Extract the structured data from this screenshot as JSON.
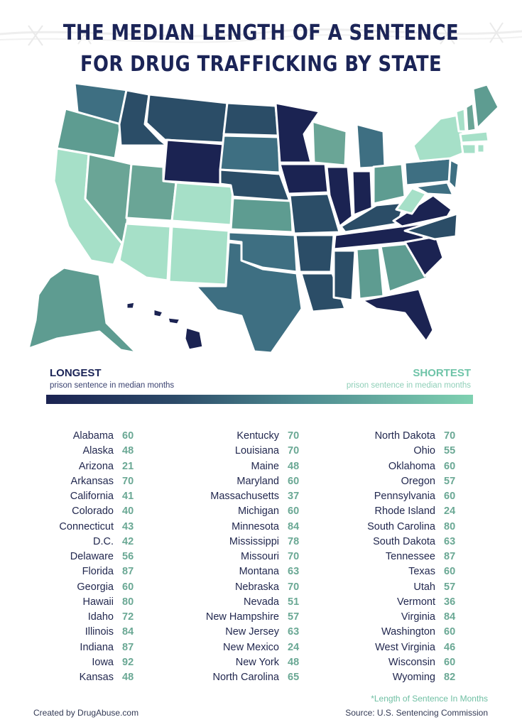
{
  "title_line1": "THE MEDIAN LENGTH OF A SENTENCE",
  "title_line2": "FOR DRUG TRAFFICKING BY STATE",
  "legend": {
    "longest": "LONGEST",
    "longest_sub": "prison sentence in median months",
    "shortest": "SHORTEST",
    "shortest_sub": "prison sentence in median months",
    "color_dark": "#1b2352",
    "color_light": "#7fd1b1"
  },
  "columns": [
    [
      {
        "state": "Alabama",
        "value": "60"
      },
      {
        "state": "Alaska",
        "value": "48"
      },
      {
        "state": "Arizona",
        "value": "21"
      },
      {
        "state": "Arkansas",
        "value": "70"
      },
      {
        "state": "California",
        "value": "41"
      },
      {
        "state": "Colorado",
        "value": "40"
      },
      {
        "state": "Connecticut",
        "value": "43"
      },
      {
        "state": "D.C.",
        "value": "42"
      },
      {
        "state": "Delaware",
        "value": "56"
      },
      {
        "state": "Florida",
        "value": "87"
      },
      {
        "state": "Georgia",
        "value": "60"
      },
      {
        "state": "Hawaii",
        "value": "80"
      },
      {
        "state": "Idaho",
        "value": "72"
      },
      {
        "state": "Illinois",
        "value": "84"
      },
      {
        "state": "Indiana",
        "value": "87"
      },
      {
        "state": "Iowa",
        "value": "92"
      },
      {
        "state": "Kansas",
        "value": "48"
      }
    ],
    [
      {
        "state": "Kentucky",
        "value": "70"
      },
      {
        "state": "Louisiana",
        "value": "70"
      },
      {
        "state": "Maine",
        "value": "48"
      },
      {
        "state": "Maryland",
        "value": "60"
      },
      {
        "state": "Massachusetts",
        "value": "37"
      },
      {
        "state": "Michigan",
        "value": "60"
      },
      {
        "state": "Minnesota",
        "value": "84"
      },
      {
        "state": "Mississippi",
        "value": "78"
      },
      {
        "state": "Missouri",
        "value": "70"
      },
      {
        "state": "Montana",
        "value": "63"
      },
      {
        "state": "Nebraska",
        "value": "70"
      },
      {
        "state": "Nevada",
        "value": "51"
      },
      {
        "state": "New Hampshire",
        "value": "57"
      },
      {
        "state": "New Jersey",
        "value": "63"
      },
      {
        "state": "New Mexico",
        "value": "24"
      },
      {
        "state": "New York",
        "value": "48"
      },
      {
        "state": "North Carolina",
        "value": "65"
      }
    ],
    [
      {
        "state": "North Dakota",
        "value": "70"
      },
      {
        "state": "Ohio",
        "value": "55"
      },
      {
        "state": "Oklahoma",
        "value": "60"
      },
      {
        "state": "Oregon",
        "value": "57"
      },
      {
        "state": "Pennsylvania",
        "value": "60"
      },
      {
        "state": "Rhode Island",
        "value": "24"
      },
      {
        "state": "South Carolina",
        "value": "80"
      },
      {
        "state": "South Dakota",
        "value": "63"
      },
      {
        "state": "Tennessee",
        "value": "87"
      },
      {
        "state": "Texas",
        "value": "60"
      },
      {
        "state": "Utah",
        "value": "57"
      },
      {
        "state": "Vermont",
        "value": "36"
      },
      {
        "state": "Virginia",
        "value": "84"
      },
      {
        "state": "Washington",
        "value": "60"
      },
      {
        "state": "West Virginia",
        "value": "46"
      },
      {
        "state": "Wisconsin",
        "value": "60"
      },
      {
        "state": "Wyoming",
        "value": "82"
      }
    ]
  ],
  "footnote": "*Length of Sentence In Months",
  "credit": "Created by DrugAbuse.com",
  "source": "Source: U.S. Sentencing Commission"
}
